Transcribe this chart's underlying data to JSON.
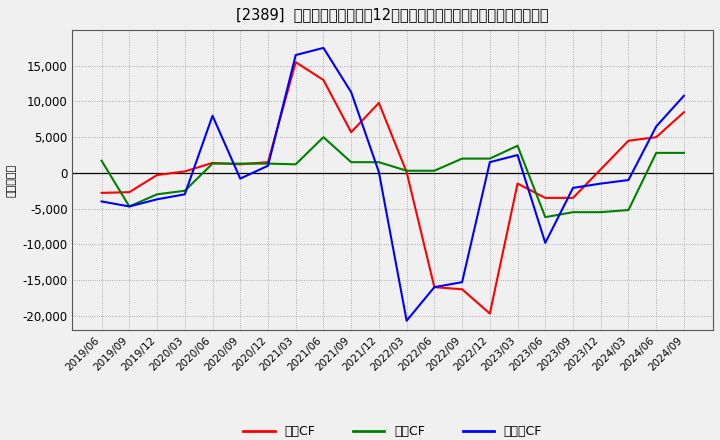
{
  "title": "[2389]  キャッシュフローの12か月移動合計の対前年同期増減額の推移",
  "ylabel": "（百万円）",
  "background_color": "#f0f0f0",
  "plot_bg_color": "#f0f0f0",
  "grid_color": "#aaaaaa",
  "x_labels": [
    "2019/06",
    "2019/09",
    "2019/12",
    "2020/03",
    "2020/06",
    "2020/09",
    "2020/12",
    "2021/03",
    "2021/06",
    "2021/09",
    "2021/12",
    "2022/03",
    "2022/06",
    "2022/09",
    "2022/12",
    "2023/03",
    "2023/06",
    "2023/09",
    "2023/12",
    "2024/03",
    "2024/06",
    "2024/09"
  ],
  "series_order": [
    "営業CF",
    "投資CF",
    "フリーCF"
  ],
  "series": {
    "営業CF": {
      "color": "#ff0000",
      "values": [
        -2800,
        -2700,
        -300,
        200,
        1400,
        1200,
        1500,
        15500,
        13000,
        5700,
        9800,
        100,
        -16000,
        -16300,
        -19700,
        -1500,
        -3500,
        -3500,
        500,
        4500,
        5000,
        8500
      ]
    },
    "投資CF": {
      "color": "#008000",
      "values": [
        1700,
        -4700,
        -3000,
        -2500,
        1300,
        1300,
        1300,
        1200,
        5000,
        1500,
        1500,
        300,
        300,
        2000,
        2000,
        3800,
        -6200,
        -5500,
        -5500,
        -5200,
        2800,
        2800
      ]
    },
    "フリーCF": {
      "color": "#0000ff",
      "values": [
        -4000,
        -4700,
        -3700,
        -3000,
        8000,
        -800,
        1000,
        16500,
        17500,
        11300,
        100,
        -20700,
        -16000,
        -15300,
        1500,
        2500,
        -9800,
        -2100,
        -1500,
        -1000,
        6500,
        10800
      ]
    }
  },
  "ylim": [
    -22000,
    20000
  ],
  "yticks": [
    -20000,
    -15000,
    -10000,
    -5000,
    0,
    5000,
    10000,
    15000
  ],
  "legend_labels": [
    "営業CF",
    "投資CF",
    "フリーCF"
  ],
  "legend_colors": [
    "#ff0000",
    "#008000",
    "#0000ff"
  ]
}
